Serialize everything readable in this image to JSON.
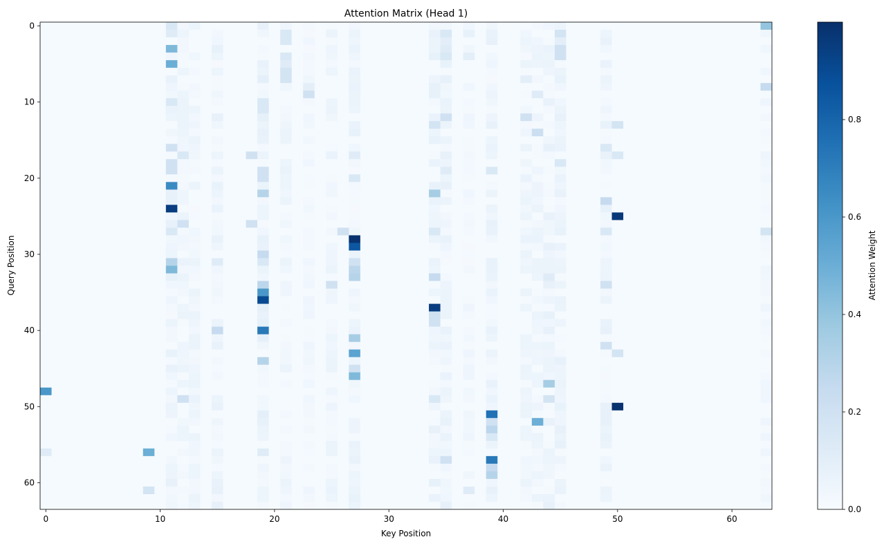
{
  "chart_data": {
    "type": "heatmap",
    "title": "Attention Matrix (Head 1)",
    "xlabel": "Key Position",
    "ylabel": "Query Position",
    "rows": 64,
    "cols": 64,
    "x_ticks": [
      0,
      10,
      20,
      30,
      40,
      50,
      60
    ],
    "y_ticks": [
      0,
      10,
      20,
      30,
      40,
      50,
      60
    ],
    "colorbar": {
      "label": "Attention Weight",
      "range": [
        0,
        1
      ],
      "ticks": [
        "0.0",
        "0.2",
        "0.4",
        "0.6",
        "0.8"
      ],
      "tick_values": [
        0,
        0.2,
        0.4,
        0.6,
        0.8
      ],
      "colormap": "Blues"
    },
    "grid": false,
    "background_value": 0.01,
    "cells": [
      [
        0,
        11,
        0.15
      ],
      [
        0,
        63,
        0.4
      ],
      [
        1,
        11,
        0.12
      ],
      [
        1,
        21,
        0.15
      ],
      [
        1,
        35,
        0.15
      ],
      [
        1,
        37,
        0.08
      ],
      [
        1,
        45,
        0.18
      ],
      [
        2,
        21,
        0.15
      ],
      [
        2,
        35,
        0.1
      ],
      [
        2,
        45,
        0.1
      ],
      [
        3,
        11,
        0.45
      ],
      [
        3,
        35,
        0.12
      ],
      [
        3,
        45,
        0.2
      ],
      [
        4,
        21,
        0.15
      ],
      [
        4,
        35,
        0.15
      ],
      [
        4,
        37,
        0.1
      ],
      [
        4,
        45,
        0.2
      ],
      [
        5,
        11,
        0.5
      ],
      [
        5,
        21,
        0.12
      ],
      [
        6,
        21,
        0.18
      ],
      [
        7,
        21,
        0.18
      ],
      [
        7,
        35,
        0.08
      ],
      [
        7,
        42,
        0.1
      ],
      [
        8,
        23,
        0.1
      ],
      [
        8,
        63,
        0.25
      ],
      [
        9,
        23,
        0.2
      ],
      [
        9,
        43,
        0.12
      ],
      [
        10,
        11,
        0.15
      ],
      [
        10,
        19,
        0.15
      ],
      [
        11,
        19,
        0.15
      ],
      [
        12,
        35,
        0.2
      ],
      [
        12,
        42,
        0.2
      ],
      [
        13,
        34,
        0.18
      ],
      [
        13,
        50,
        0.18
      ],
      [
        14,
        43,
        0.22
      ],
      [
        16,
        11,
        0.2
      ],
      [
        16,
        49,
        0.15
      ],
      [
        17,
        12,
        0.15
      ],
      [
        17,
        18,
        0.2
      ],
      [
        17,
        27,
        0.12
      ],
      [
        17,
        50,
        0.15
      ],
      [
        18,
        11,
        0.2
      ],
      [
        18,
        45,
        0.15
      ],
      [
        19,
        11,
        0.2
      ],
      [
        19,
        19,
        0.2
      ],
      [
        19,
        35,
        0.12
      ],
      [
        19,
        39,
        0.15
      ],
      [
        20,
        19,
        0.2
      ],
      [
        20,
        27,
        0.15
      ],
      [
        21,
        11,
        0.65
      ],
      [
        22,
        19,
        0.3
      ],
      [
        22,
        34,
        0.35
      ],
      [
        23,
        49,
        0.25
      ],
      [
        24,
        11,
        0.95
      ],
      [
        25,
        50,
        0.97
      ],
      [
        26,
        12,
        0.2
      ],
      [
        26,
        18,
        0.2
      ],
      [
        27,
        11,
        0.15
      ],
      [
        27,
        26,
        0.2
      ],
      [
        27,
        34,
        0.15
      ],
      [
        27,
        49,
        0.15
      ],
      [
        27,
        63,
        0.18
      ],
      [
        28,
        27,
        0.99
      ],
      [
        29,
        27,
        0.85
      ],
      [
        30,
        19,
        0.25
      ],
      [
        31,
        11,
        0.3
      ],
      [
        31,
        15,
        0.12
      ],
      [
        31,
        19,
        0.15
      ],
      [
        31,
        27,
        0.2
      ],
      [
        32,
        11,
        0.45
      ],
      [
        32,
        27,
        0.28
      ],
      [
        33,
        27,
        0.3
      ],
      [
        33,
        34,
        0.25
      ],
      [
        33,
        44,
        0.12
      ],
      [
        34,
        19,
        0.28
      ],
      [
        34,
        25,
        0.2
      ],
      [
        34,
        49,
        0.2
      ],
      [
        35,
        19,
        0.6
      ],
      [
        36,
        19,
        0.9
      ],
      [
        37,
        34,
        0.95
      ],
      [
        38,
        34,
        0.2
      ],
      [
        39,
        34,
        0.2
      ],
      [
        40,
        15,
        0.25
      ],
      [
        40,
        19,
        0.72
      ],
      [
        41,
        27,
        0.35
      ],
      [
        42,
        49,
        0.2
      ],
      [
        43,
        27,
        0.55
      ],
      [
        43,
        50,
        0.18
      ],
      [
        44,
        19,
        0.3
      ],
      [
        45,
        27,
        0.2
      ],
      [
        46,
        27,
        0.45
      ],
      [
        47,
        44,
        0.35
      ],
      [
        48,
        0,
        0.6
      ],
      [
        49,
        12,
        0.2
      ],
      [
        49,
        34,
        0.15
      ],
      [
        49,
        44,
        0.18
      ],
      [
        50,
        50,
        0.99
      ],
      [
        51,
        39,
        0.75
      ],
      [
        52,
        43,
        0.5
      ],
      [
        52,
        39,
        0.2
      ],
      [
        53,
        39,
        0.28
      ],
      [
        54,
        39,
        0.15
      ],
      [
        56,
        0,
        0.12
      ],
      [
        56,
        9,
        0.5
      ],
      [
        56,
        19,
        0.12
      ],
      [
        57,
        35,
        0.2
      ],
      [
        57,
        39,
        0.72
      ],
      [
        58,
        39,
        0.25
      ],
      [
        59,
        39,
        0.3
      ],
      [
        61,
        9,
        0.18
      ],
      [
        61,
        37,
        0.12
      ]
    ],
    "column_noise": [
      [
        11,
        0.05
      ],
      [
        12,
        0.04
      ],
      [
        13,
        0.04
      ],
      [
        15,
        0.05
      ],
      [
        19,
        0.06
      ],
      [
        21,
        0.04
      ],
      [
        23,
        0.03
      ],
      [
        25,
        0.04
      ],
      [
        27,
        0.05
      ],
      [
        34,
        0.05
      ],
      [
        35,
        0.05
      ],
      [
        37,
        0.03
      ],
      [
        39,
        0.05
      ],
      [
        42,
        0.04
      ],
      [
        43,
        0.04
      ],
      [
        44,
        0.05
      ],
      [
        45,
        0.05
      ],
      [
        49,
        0.05
      ],
      [
        63,
        0.03
      ]
    ]
  }
}
